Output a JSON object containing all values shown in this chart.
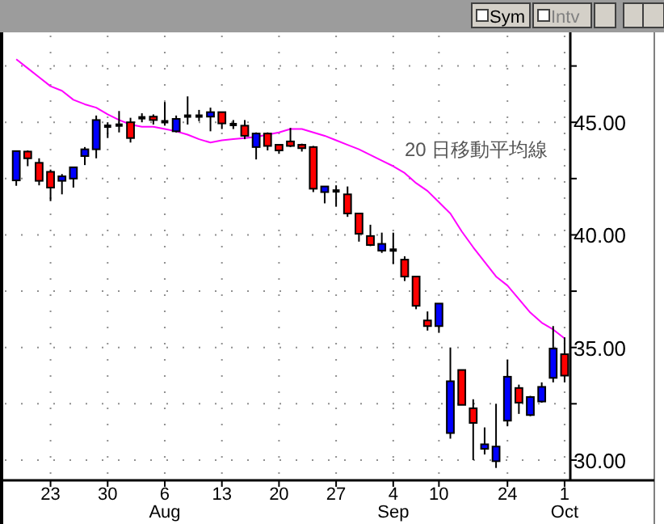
{
  "chart_data": {
    "type": "candlestick",
    "categories": [
      null,
      null,
      null,
      "23",
      null,
      null,
      null,
      null,
      "30",
      null,
      null,
      null,
      null,
      "6\nAug",
      null,
      null,
      null,
      null,
      "13",
      null,
      null,
      null,
      null,
      "20",
      null,
      null,
      null,
      null,
      "27",
      null,
      null,
      null,
      null,
      "4\nSep",
      null,
      null,
      null,
      "10",
      null,
      null,
      null,
      null,
      null,
      "24",
      null,
      null,
      null,
      null,
      "1\nOct"
    ],
    "ohlc": [
      [
        42.42,
        43.72,
        42.18,
        43.72
      ],
      [
        43.7,
        43.75,
        43.05,
        43.4
      ],
      [
        43.2,
        43.4,
        42.2,
        42.4
      ],
      [
        42.8,
        42.9,
        41.5,
        42.1
      ],
      [
        42.4,
        42.7,
        41.8,
        42.6
      ],
      [
        42.5,
        43.0,
        42.1,
        43.0
      ],
      [
        43.5,
        43.9,
        43.1,
        43.8
      ],
      [
        43.8,
        45.3,
        43.4,
        45.1
      ],
      [
        44.85,
        45.0,
        44.3,
        44.8
      ],
      [
        44.85,
        45.5,
        44.55,
        44.9
      ],
      [
        45.0,
        45.2,
        44.1,
        44.3
      ],
      [
        45.2,
        45.4,
        45.0,
        45.2
      ],
      [
        45.25,
        45.35,
        44.9,
        45.1
      ],
      [
        45.0,
        45.9,
        44.85,
        45.05
      ],
      [
        44.6,
        45.3,
        44.55,
        45.15
      ],
      [
        45.25,
        46.15,
        44.9,
        45.3
      ],
      [
        45.25,
        45.55,
        45.05,
        45.3
      ],
      [
        45.25,
        45.65,
        44.6,
        45.45
      ],
      [
        45.45,
        45.45,
        44.7,
        44.95
      ],
      [
        44.9,
        45.1,
        44.7,
        44.9
      ],
      [
        44.85,
        45.1,
        44.25,
        44.4
      ],
      [
        43.9,
        44.55,
        43.35,
        44.5
      ],
      [
        44.5,
        44.55,
        43.75,
        43.95
      ],
      [
        44.0,
        44.0,
        43.6,
        43.75
      ],
      [
        44.15,
        44.75,
        43.9,
        43.95
      ],
      [
        44.0,
        44.05,
        43.7,
        43.85
      ],
      [
        43.9,
        43.95,
        41.9,
        42.05
      ],
      [
        41.9,
        42.15,
        41.4,
        42.15
      ],
      [
        41.95,
        42.2,
        41.25,
        41.95
      ],
      [
        41.8,
        42.15,
        40.8,
        40.95
      ],
      [
        40.95,
        40.95,
        39.7,
        40.05
      ],
      [
        39.95,
        40.45,
        39.5,
        39.55
      ],
      [
        39.3,
        40.1,
        39.2,
        39.6
      ],
      [
        39.35,
        40.1,
        38.7,
        39.3
      ],
      [
        38.9,
        39.05,
        37.95,
        38.15
      ],
      [
        38.15,
        38.15,
        36.7,
        36.85
      ],
      [
        36.2,
        36.6,
        35.75,
        35.95
      ],
      [
        35.95,
        36.95,
        35.65,
        36.95
      ],
      [
        31.2,
        35.0,
        30.95,
        33.5
      ],
      [
        34.0,
        34.0,
        32.45,
        32.45
      ],
      [
        32.3,
        32.7,
        30.0,
        31.65
      ],
      [
        30.5,
        31.45,
        30.25,
        30.7
      ],
      [
        29.95,
        32.5,
        29.65,
        30.6
      ],
      [
        31.75,
        34.45,
        31.5,
        33.7
      ],
      [
        33.2,
        33.35,
        32.05,
        32.55
      ],
      [
        32.0,
        32.85,
        31.95,
        32.8
      ],
      [
        32.6,
        33.45,
        32.55,
        33.25
      ],
      [
        33.65,
        35.95,
        33.45,
        34.95
      ],
      [
        34.7,
        35.45,
        33.45,
        33.75
      ]
    ],
    "colors": [
      "#0000ff",
      "#ff0000",
      "#ff0000",
      "#ff0000",
      "#0000ff",
      "#0000ff",
      "#0000ff",
      "#0000ff",
      "#000000",
      "#000000",
      "#ff0000",
      "#000000",
      "#ff0000",
      "#000000",
      "#0000ff",
      "#000000",
      "#000000",
      "#0000ff",
      "#ff0000",
      "#000000",
      "#ff0000",
      "#0000ff",
      "#ff0000",
      "#ff0000",
      "#ff0000",
      "#ff0000",
      "#ff0000",
      "#0000ff",
      "#000000",
      "#ff0000",
      "#ff0000",
      "#ff0000",
      "#0000ff",
      "#000000",
      "#ff0000",
      "#ff0000",
      "#ff0000",
      "#0000ff",
      "#0000ff",
      "#ff0000",
      "#ff0000",
      "#0000ff",
      "#0000ff",
      "#0000ff",
      "#ff0000",
      "#0000ff",
      "#0000ff",
      "#0000ff",
      "#ff0000"
    ],
    "series": [
      {
        "type": "line",
        "name": "20 日移動平均線",
        "color": "#ff00ff",
        "values": [
          47.8,
          47.4,
          47.0,
          46.6,
          46.4,
          46.0,
          45.8,
          45.65,
          45.35,
          45.1,
          44.9,
          44.8,
          44.8,
          44.7,
          44.6,
          44.45,
          44.25,
          44.1,
          44.2,
          44.25,
          44.3,
          44.35,
          44.45,
          44.55,
          44.7,
          44.7,
          44.55,
          44.4,
          44.2,
          44.0,
          43.8,
          43.55,
          43.3,
          43.05,
          42.75,
          42.3,
          41.95,
          41.45,
          40.95,
          40.15,
          39.45,
          38.8,
          38.15,
          37.75,
          37.15,
          36.55,
          36.1,
          35.8,
          35.4
        ]
      }
    ],
    "ylim": [
      29.1,
      48.85
    ],
    "yticks": [
      {
        "value": 30,
        "label": "30.00"
      },
      {
        "value": 32.5,
        "label": null
      },
      {
        "value": 35,
        "label": "35.00"
      },
      {
        "value": 37.5,
        "label": null
      },
      {
        "value": 40,
        "label": "40.00"
      },
      {
        "value": 42.5,
        "label": null
      },
      {
        "value": 45,
        "label": "45.00"
      },
      {
        "value": 47.5,
        "label": null
      }
    ],
    "grid": true,
    "annotations": [
      "Sym",
      "Intv"
    ]
  }
}
